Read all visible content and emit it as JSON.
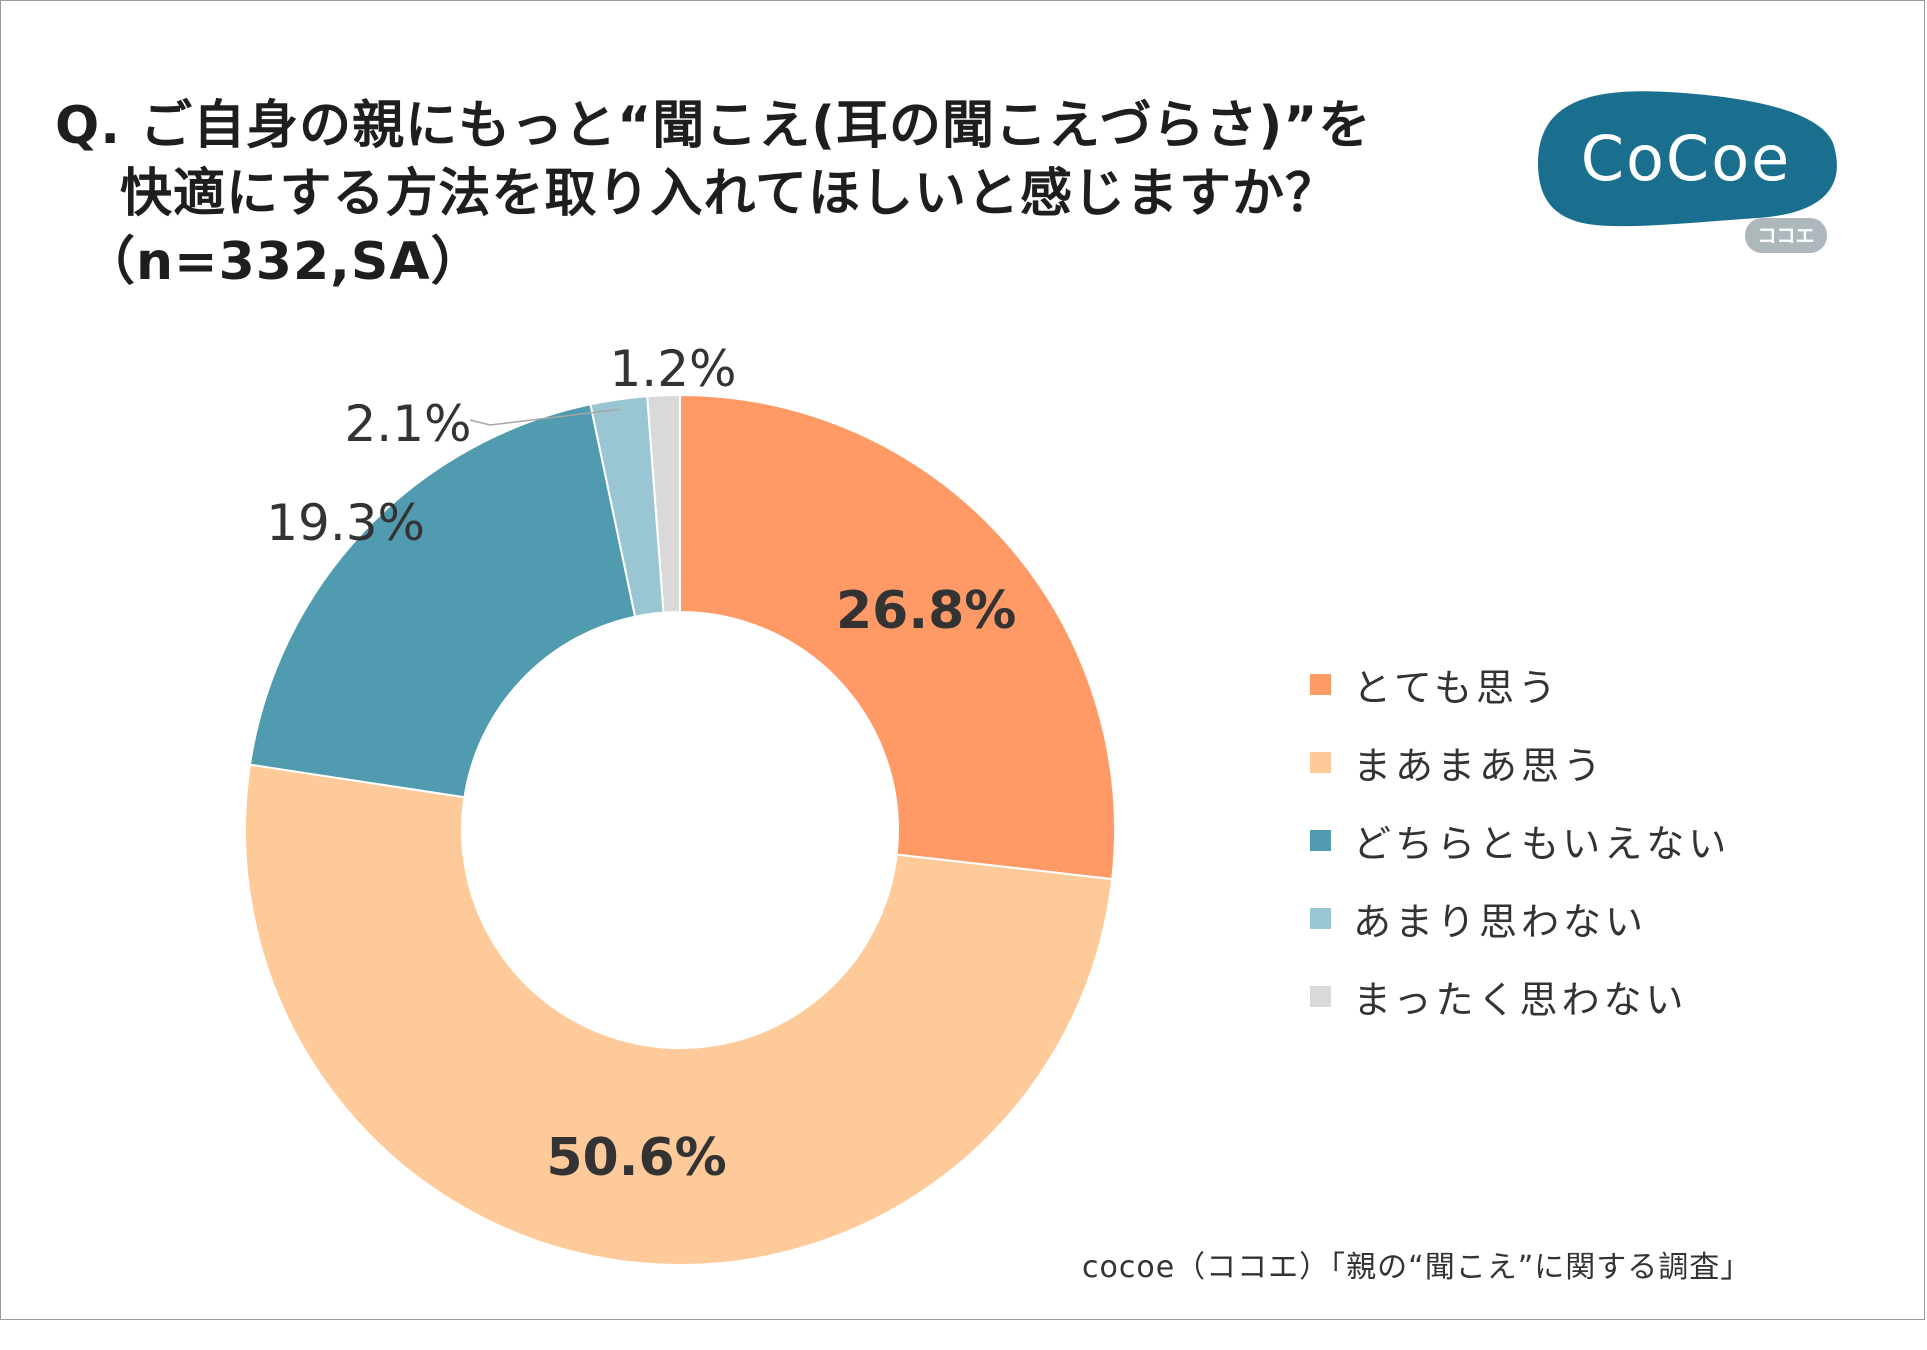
{
  "title": {
    "line1": "Q. ご自身の親にもっと“聞こえ(耳の聞こえづらさ)”を",
    "line2": "快適にする方法を取り入れてほしいと感じますか？",
    "line3": "（n=332,SA）"
  },
  "logo": {
    "main": "CoCoe",
    "sub": "ココエ",
    "color": "#1b6f8e",
    "sub_color": "#aeb8bc"
  },
  "chart_data": {
    "type": "pie",
    "title": "Q. ご自身の親にもっと“聞こえ(耳の聞こえづらさ)”を快適にする方法を取り入れてほしいと感じますか？（n=332,SA）",
    "categories": [
      "とても思う",
      "まあまあ思う",
      "どちらともいえない",
      "あまり思わない",
      "まったく思わない"
    ],
    "values": [
      26.8,
      50.6,
      19.3,
      2.1,
      1.2
    ],
    "labels": [
      "26.8%",
      "50.6%",
      "19.3%",
      "2.1%",
      "1.2%"
    ],
    "colors": [
      "#ff9a66",
      "#ffca99",
      "#519bb1",
      "#9ac6d3",
      "#d9d9d9"
    ],
    "donut": true,
    "legend_position": "right"
  },
  "source": "cocoe（ココエ）「親の“聞こえ”に関する調査」"
}
